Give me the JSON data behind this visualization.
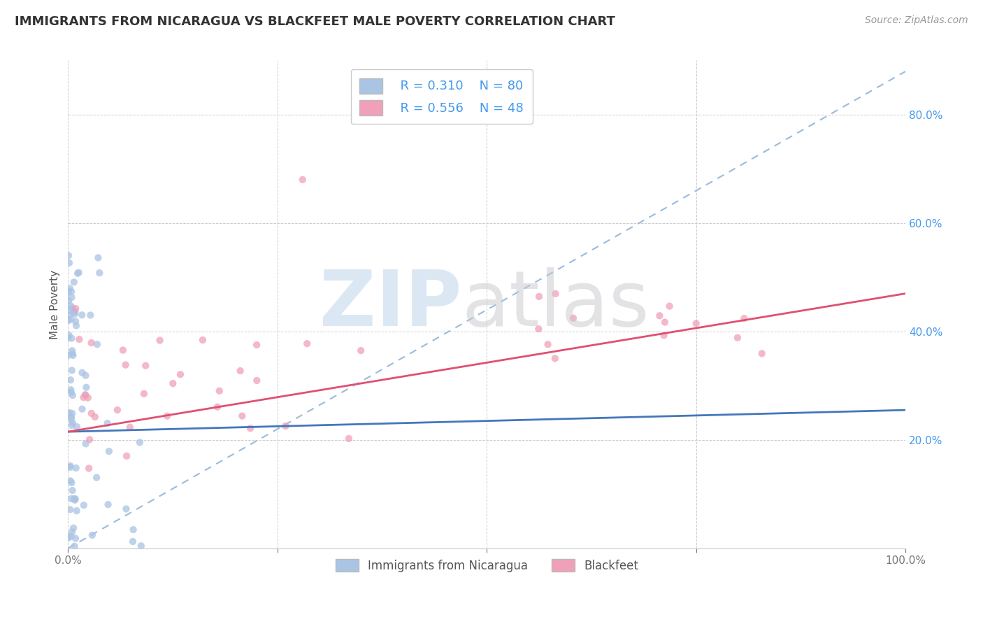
{
  "title": "IMMIGRANTS FROM NICARAGUA VS BLACKFEET MALE POVERTY CORRELATION CHART",
  "source": "Source: ZipAtlas.com",
  "ylabel": "Male Poverty",
  "xlim": [
    0,
    1.0
  ],
  "ylim": [
    0,
    0.9
  ],
  "legend_R1": "R = 0.310",
  "legend_N1": "N = 80",
  "legend_R2": "R = 0.556",
  "legend_N2": "N = 48",
  "color_blue": "#aac4e4",
  "color_pink": "#f0a0b8",
  "line_blue": "#4477bb",
  "line_pink": "#e05070",
  "line_dashed_color": "#99bbdd",
  "text_blue": "#4499ee",
  "background": "#ffffff",
  "grid_color": "#cccccc",
  "watermark_zip_color": "#c5d8ed",
  "watermark_atlas_color": "#c8c8cc",
  "label_series1": "Immigrants from Nicaragua",
  "label_series2": "Blackfeet",
  "blue_line_x0": 0.0,
  "blue_line_y0": 0.215,
  "blue_line_x1": 1.0,
  "blue_line_y1": 0.255,
  "pink_line_x0": 0.0,
  "pink_line_y0": 0.215,
  "pink_line_x1": 1.0,
  "pink_line_y1": 0.47,
  "dashed_line_x0": 0.0,
  "dashed_line_y0": 0.0,
  "dashed_line_x1": 1.0,
  "dashed_line_y1": 0.88
}
